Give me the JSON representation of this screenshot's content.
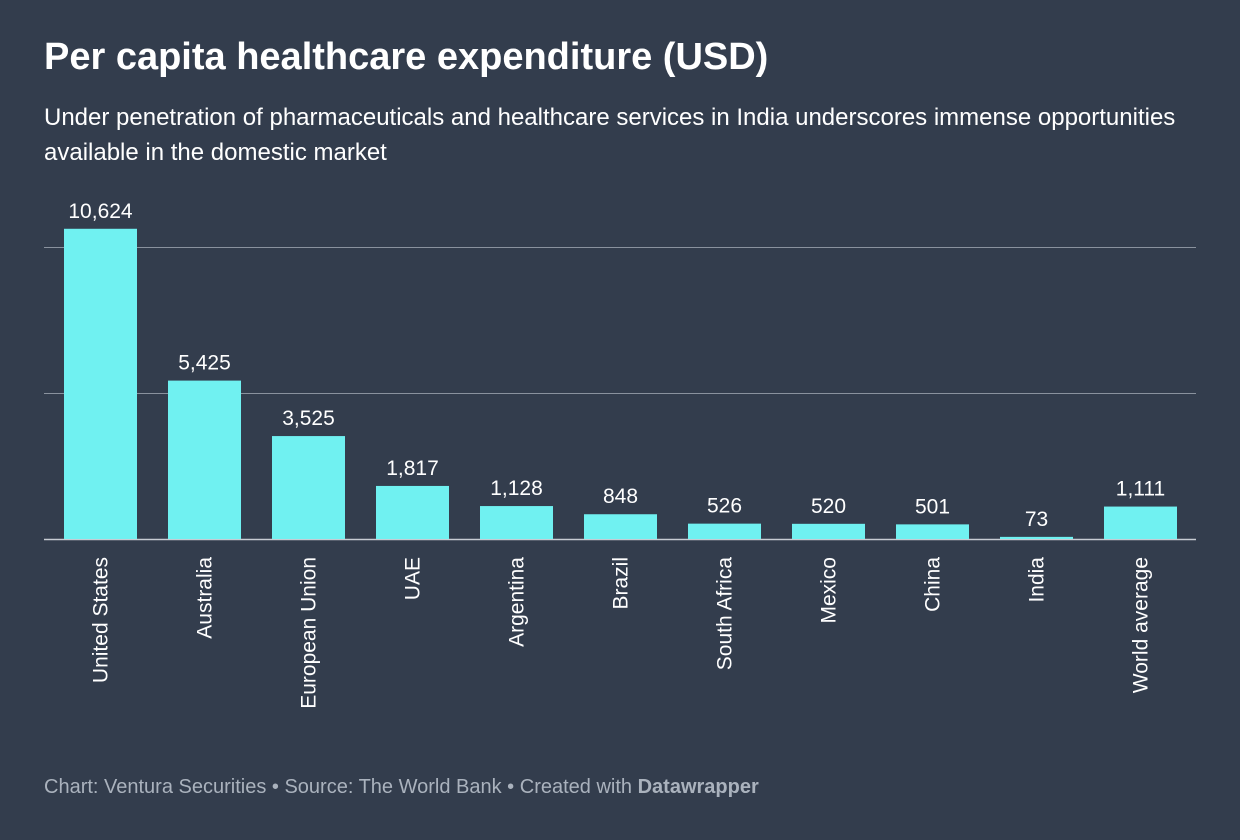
{
  "chart_data": {
    "type": "bar",
    "title": "Per capita healthcare expenditure (USD)",
    "subtitle": "Under penetration of pharmaceuticals and healthcare services in India underscores immense opportunities available in the domestic market",
    "xlabel": "",
    "ylabel": "",
    "ylim": [
      0,
      10000
    ],
    "gridlines": [
      0,
      5000,
      10000
    ],
    "grid": true,
    "categories": [
      "United States",
      "Australia",
      "European Union",
      "UAE",
      "Argentina",
      "Brazil",
      "South Africa",
      "Mexico",
      "China",
      "India",
      "World average"
    ],
    "values": [
      10624,
      5425,
      3525,
      1817,
      1128,
      848,
      526,
      520,
      501,
      73,
      1111
    ],
    "value_labels": [
      "10,624",
      "5,425",
      "3,525",
      "1,817",
      "1,128",
      "848",
      "526",
      "520",
      "501",
      "73",
      "1,111"
    ],
    "bar_color": "#70f1f1"
  },
  "footer": {
    "chart_credit": "Chart: Ventura Securities",
    "separator": " • ",
    "source": "Source: The World Bank",
    "created_with": "Created with ",
    "brand": "Datawrapper"
  },
  "colors": {
    "background": "#333d4d",
    "text": "#ffffff",
    "gridline": "#8a929e",
    "footer_text": "#aab2bd"
  }
}
